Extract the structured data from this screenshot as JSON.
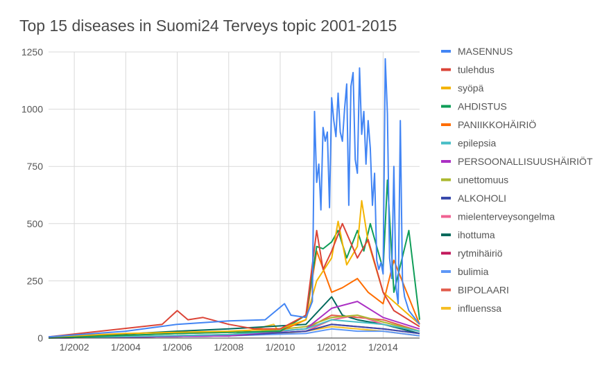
{
  "chart_data": {
    "type": "line",
    "title": "Top 15 diseases in Suomi24 Terveys topic 2001-2015",
    "xlabel": "",
    "ylabel": "",
    "x_start": "2001-01",
    "x_end": "2015-06",
    "x_ticks": [
      {
        "label": "1/2002",
        "value": "2002-01"
      },
      {
        "label": "1/2004",
        "value": "2004-01"
      },
      {
        "label": "1/2006",
        "value": "2006-01"
      },
      {
        "label": "1/2008",
        "value": "2008-01"
      },
      {
        "label": "1/2010",
        "value": "2010-01"
      },
      {
        "label": "1/2012",
        "value": "2012-01"
      },
      {
        "label": "1/2014",
        "value": "2014-01"
      }
    ],
    "y_ticks": [
      0,
      250,
      500,
      750,
      1000,
      1250
    ],
    "ylim": [
      0,
      1250
    ],
    "grid": "vertical-and-horizontal",
    "legend_position": "right",
    "series": [
      {
        "name": "MASENNUS",
        "color": "#4285f4",
        "points": [
          [
            "2001-01",
            5
          ],
          [
            "2004-01",
            30
          ],
          [
            "2006-01",
            60
          ],
          [
            "2008-01",
            75
          ],
          [
            "2009-06",
            80
          ],
          [
            "2010-03",
            150
          ],
          [
            "2010-06",
            100
          ],
          [
            "2011-01",
            90
          ],
          [
            "2011-04",
            160
          ],
          [
            "2011-05",
            990
          ],
          [
            "2011-06",
            680
          ],
          [
            "2011-07",
            760
          ],
          [
            "2011-08",
            560
          ],
          [
            "2011-09",
            920
          ],
          [
            "2011-10",
            860
          ],
          [
            "2011-11",
            900
          ],
          [
            "2011-12",
            570
          ],
          [
            "2012-01",
            1050
          ],
          [
            "2012-02",
            950
          ],
          [
            "2012-03",
            880
          ],
          [
            "2012-04",
            1070
          ],
          [
            "2012-05",
            900
          ],
          [
            "2012-06",
            860
          ],
          [
            "2012-07",
            1000
          ],
          [
            "2012-08",
            1110
          ],
          [
            "2012-09",
            580
          ],
          [
            "2012-10",
            1100
          ],
          [
            "2012-11",
            1160
          ],
          [
            "2012-12",
            780
          ],
          [
            "2013-01",
            720
          ],
          [
            "2013-02",
            1180
          ],
          [
            "2013-03",
            890
          ],
          [
            "2013-04",
            990
          ],
          [
            "2013-05",
            760
          ],
          [
            "2013-06",
            950
          ],
          [
            "2013-07",
            830
          ],
          [
            "2013-08",
            580
          ],
          [
            "2013-09",
            720
          ],
          [
            "2013-10",
            340
          ],
          [
            "2013-11",
            300
          ],
          [
            "2013-12",
            330
          ],
          [
            "2014-01",
            280
          ],
          [
            "2014-02",
            1220
          ],
          [
            "2014-03",
            980
          ],
          [
            "2014-04",
            350
          ],
          [
            "2014-05",
            260
          ],
          [
            "2014-06",
            750
          ],
          [
            "2014-07",
            220
          ],
          [
            "2014-08",
            150
          ],
          [
            "2014-09",
            950
          ],
          [
            "2014-10",
            250
          ],
          [
            "2014-11",
            180
          ],
          [
            "2015-01",
            120
          ],
          [
            "2015-06",
            60
          ]
        ]
      },
      {
        "name": "tulehdus",
        "color": "#db4437",
        "points": [
          [
            "2001-01",
            5
          ],
          [
            "2003-01",
            30
          ],
          [
            "2005-06",
            60
          ],
          [
            "2006-01",
            120
          ],
          [
            "2006-06",
            80
          ],
          [
            "2007-01",
            90
          ],
          [
            "2008-01",
            60
          ],
          [
            "2009-01",
            40
          ],
          [
            "2010-01",
            40
          ],
          [
            "2011-01",
            100
          ],
          [
            "2011-06",
            470
          ],
          [
            "2011-09",
            300
          ],
          [
            "2012-01",
            380
          ],
          [
            "2012-06",
            500
          ],
          [
            "2013-01",
            350
          ],
          [
            "2013-06",
            430
          ],
          [
            "2014-01",
            200
          ],
          [
            "2014-06",
            120
          ],
          [
            "2015-06",
            50
          ]
        ]
      },
      {
        "name": "syöpä",
        "color": "#f4b400",
        "points": [
          [
            "2001-01",
            5
          ],
          [
            "2004-01",
            20
          ],
          [
            "2008-01",
            30
          ],
          [
            "2010-01",
            40
          ],
          [
            "2011-01",
            80
          ],
          [
            "2011-06",
            250
          ],
          [
            "2012-01",
            350
          ],
          [
            "2012-04",
            510
          ],
          [
            "2012-08",
            320
          ],
          [
            "2013-01",
            400
          ],
          [
            "2013-03",
            600
          ],
          [
            "2013-06",
            420
          ],
          [
            "2014-01",
            200
          ],
          [
            "2015-06",
            60
          ]
        ]
      },
      {
        "name": "AHDISTUS",
        "color": "#0f9d58",
        "points": [
          [
            "2001-01",
            0
          ],
          [
            "2006-01",
            20
          ],
          [
            "2010-01",
            30
          ],
          [
            "2011-01",
            100
          ],
          [
            "2011-06",
            400
          ],
          [
            "2011-09",
            390
          ],
          [
            "2012-01",
            420
          ],
          [
            "2012-04",
            470
          ],
          [
            "2012-08",
            350
          ],
          [
            "2013-01",
            470
          ],
          [
            "2013-04",
            380
          ],
          [
            "2013-07",
            500
          ],
          [
            "2014-01",
            300
          ],
          [
            "2014-03",
            690
          ],
          [
            "2014-06",
            200
          ],
          [
            "2015-01",
            470
          ],
          [
            "2015-06",
            80
          ]
        ]
      },
      {
        "name": "PANIIKKOHÄIRIÖ",
        "color": "#ff6d00",
        "points": [
          [
            "2001-01",
            0
          ],
          [
            "2006-01",
            20
          ],
          [
            "2010-01",
            30
          ],
          [
            "2011-01",
            80
          ],
          [
            "2011-06",
            380
          ],
          [
            "2012-01",
            200
          ],
          [
            "2012-06",
            220
          ],
          [
            "2013-01",
            260
          ],
          [
            "2013-06",
            200
          ],
          [
            "2014-01",
            150
          ],
          [
            "2014-06",
            340
          ],
          [
            "2015-06",
            60
          ]
        ]
      },
      {
        "name": "epilepsia",
        "color": "#46bdc6",
        "points": [
          [
            "2001-01",
            0
          ],
          [
            "2008-01",
            15
          ],
          [
            "2011-01",
            40
          ],
          [
            "2012-01",
            80
          ],
          [
            "2013-01",
            70
          ],
          [
            "2014-01",
            60
          ],
          [
            "2015-06",
            30
          ]
        ]
      },
      {
        "name": "PERSOONALLISUUSHÄIRIÖT",
        "color": "#ab30c4",
        "points": [
          [
            "2001-01",
            0
          ],
          [
            "2008-01",
            10
          ],
          [
            "2011-01",
            40
          ],
          [
            "2012-01",
            130
          ],
          [
            "2013-01",
            160
          ],
          [
            "2014-01",
            90
          ],
          [
            "2015-06",
            40
          ]
        ]
      },
      {
        "name": "unettomuus",
        "color": "#abb82e",
        "points": [
          [
            "2001-01",
            0
          ],
          [
            "2008-01",
            15
          ],
          [
            "2011-01",
            50
          ],
          [
            "2012-01",
            90
          ],
          [
            "2013-01",
            100
          ],
          [
            "2014-01",
            70
          ],
          [
            "2015-06",
            30
          ]
        ]
      },
      {
        "name": "ALKOHOLI",
        "color": "#3949ab",
        "points": [
          [
            "2001-01",
            0
          ],
          [
            "2008-01",
            10
          ],
          [
            "2011-01",
            30
          ],
          [
            "2012-01",
            60
          ],
          [
            "2013-01",
            50
          ],
          [
            "2014-01",
            40
          ],
          [
            "2015-06",
            20
          ]
        ]
      },
      {
        "name": "mielenterveysongelma",
        "color": "#f06292",
        "points": [
          [
            "2001-01",
            0
          ],
          [
            "2008-01",
            10
          ],
          [
            "2011-01",
            30
          ],
          [
            "2012-01",
            80
          ],
          [
            "2013-01",
            100
          ],
          [
            "2014-01",
            60
          ],
          [
            "2015-06",
            30
          ]
        ]
      },
      {
        "name": "ihottuma",
        "color": "#00695c",
        "points": [
          [
            "2001-01",
            0
          ],
          [
            "2006-01",
            30
          ],
          [
            "2008-01",
            40
          ],
          [
            "2011-01",
            60
          ],
          [
            "2012-01",
            180
          ],
          [
            "2012-06",
            100
          ],
          [
            "2013-01",
            80
          ],
          [
            "2014-01",
            60
          ],
          [
            "2015-06",
            20
          ]
        ]
      },
      {
        "name": "rytmihäiriö",
        "color": "#c2185b",
        "points": [
          [
            "2001-01",
            0
          ],
          [
            "2008-01",
            10
          ],
          [
            "2011-01",
            30
          ],
          [
            "2012-01",
            60
          ],
          [
            "2013-01",
            50
          ],
          [
            "2014-01",
            40
          ],
          [
            "2015-06",
            20
          ]
        ]
      },
      {
        "name": "bulimia",
        "color": "#5e97f6",
        "points": [
          [
            "2001-01",
            0
          ],
          [
            "2008-01",
            10
          ],
          [
            "2011-01",
            20
          ],
          [
            "2012-01",
            40
          ],
          [
            "2013-01",
            30
          ],
          [
            "2014-01",
            30
          ],
          [
            "2015-06",
            10
          ]
        ]
      },
      {
        "name": "BIPOLAARI",
        "color": "#e25b4b",
        "points": [
          [
            "2001-01",
            0
          ],
          [
            "2008-01",
            15
          ],
          [
            "2011-01",
            40
          ],
          [
            "2012-01",
            100
          ],
          [
            "2013-01",
            90
          ],
          [
            "2014-01",
            80
          ],
          [
            "2015-06",
            30
          ]
        ]
      },
      {
        "name": "influenssa",
        "color": "#f6bf26",
        "points": [
          [
            "2001-01",
            0
          ],
          [
            "2008-01",
            10
          ],
          [
            "2009-10",
            60
          ],
          [
            "2010-01",
            20
          ],
          [
            "2011-01",
            30
          ],
          [
            "2012-01",
            50
          ],
          [
            "2013-01",
            40
          ],
          [
            "2014-01",
            30
          ],
          [
            "2015-06",
            10
          ]
        ]
      }
    ]
  }
}
